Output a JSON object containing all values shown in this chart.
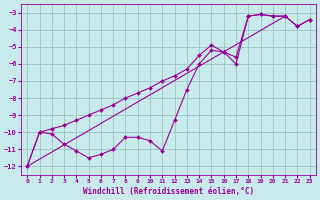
{
  "xlabel": "Windchill (Refroidissement éolien,°C)",
  "xlim": [
    -0.5,
    23.5
  ],
  "ylim": [
    -12.5,
    -2.5
  ],
  "yticks": [
    -12,
    -11,
    -10,
    -9,
    -8,
    -7,
    -6,
    -5,
    -4,
    -3
  ],
  "xticks": [
    0,
    1,
    2,
    3,
    4,
    5,
    6,
    7,
    8,
    9,
    10,
    11,
    12,
    13,
    14,
    15,
    16,
    17,
    18,
    19,
    20,
    21,
    22,
    23
  ],
  "bg_color": "#c8eaea",
  "line_color": "#990099",
  "grid_color": "#a0c8c8",
  "series1_x": [
    0,
    1,
    2,
    3,
    4,
    5,
    6,
    7,
    8,
    9,
    10,
    11,
    12,
    13,
    14,
    15,
    16,
    17,
    18,
    19,
    20,
    21,
    22,
    23
  ],
  "series1_y": [
    -12.0,
    -10.0,
    -10.1,
    -10.7,
    -11.1,
    -11.5,
    -11.3,
    -11.0,
    -10.3,
    -10.3,
    -10.5,
    -11.1,
    -9.3,
    -7.5,
    -6.0,
    -5.2,
    -5.3,
    -6.0,
    -3.2,
    -3.1,
    -3.2,
    -3.2,
    -3.8,
    -3.4
  ],
  "series2_x": [
    0,
    1,
    2,
    3,
    4,
    5,
    6,
    7,
    8,
    9,
    10,
    11,
    12,
    13,
    14,
    15,
    16,
    17,
    18,
    19,
    20,
    21,
    22,
    23
  ],
  "series2_y": [
    -12.0,
    -10.0,
    -9.8,
    -9.6,
    -9.3,
    -9.0,
    -8.7,
    -8.4,
    -8.0,
    -7.7,
    -7.4,
    -7.0,
    -6.7,
    -6.3,
    -5.5,
    -4.9,
    -5.3,
    -5.6,
    -3.2,
    -3.1,
    -3.2,
    -3.2,
    -3.8,
    -3.4
  ],
  "series3_x": [
    0,
    21
  ],
  "series3_y": [
    -12.0,
    -3.2
  ]
}
